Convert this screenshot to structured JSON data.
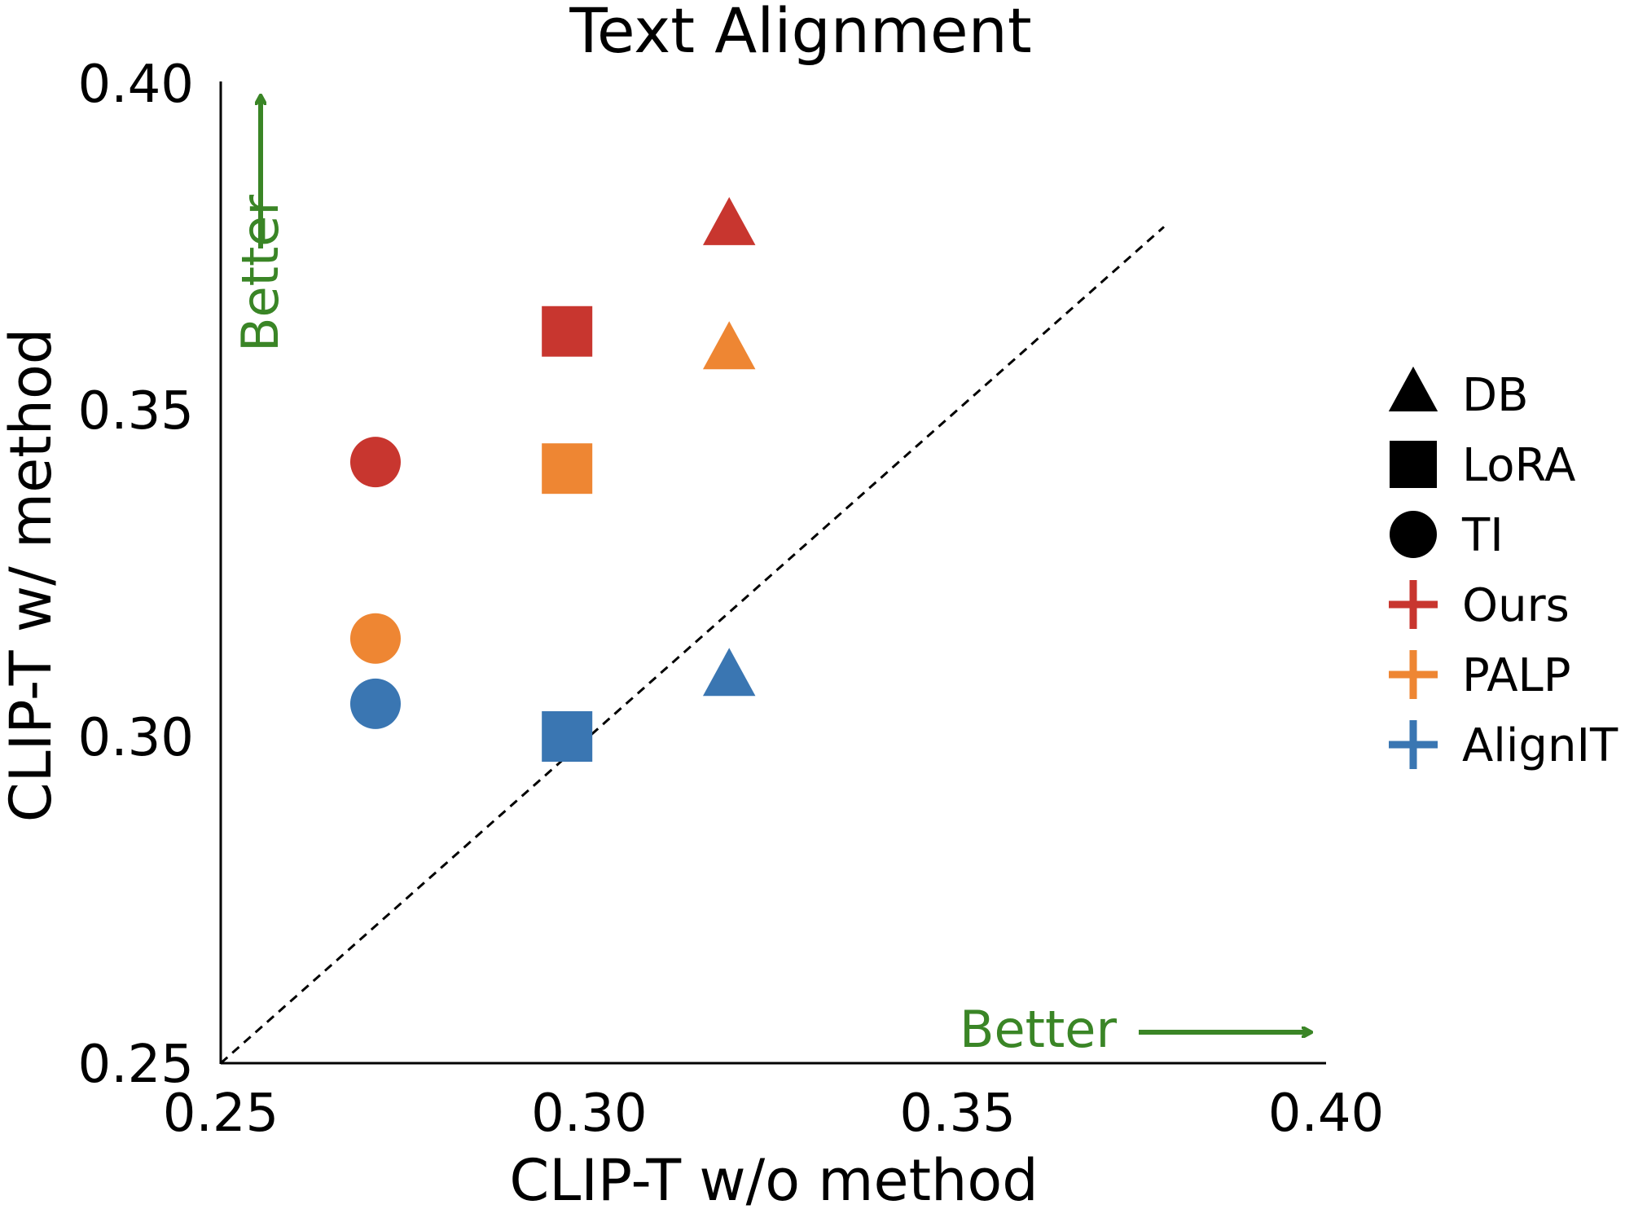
{
  "chart_data": {
    "type": "scatter",
    "title": "Text Alignment",
    "xlabel": "CLIP-T w/o method",
    "ylabel": "CLIP-T w/ method",
    "xlim": [
      0.25,
      0.4
    ],
    "ylim": [
      0.25,
      0.4
    ],
    "x_ticks": [
      "0.25",
      "0.30",
      "0.35",
      "0.40"
    ],
    "y_ticks": [
      "0.25",
      "0.30",
      "0.35",
      "0.40"
    ],
    "grid": false,
    "diagonal_reference": {
      "from": [
        0.25,
        0.25
      ],
      "to": [
        0.378,
        0.378
      ],
      "style": "dashed"
    },
    "annotations": [
      {
        "text": "Better",
        "direction": "up"
      },
      {
        "text": "Better",
        "direction": "right"
      }
    ],
    "legend_placement": "right",
    "legend_shapes": [
      {
        "label": "DB",
        "marker": "triangle"
      },
      {
        "label": "LoRA",
        "marker": "square"
      },
      {
        "label": "TI",
        "marker": "circle"
      }
    ],
    "legend_colors": [
      {
        "label": "Ours",
        "color": "#c8362f"
      },
      {
        "label": "PALP",
        "color": "#ee8633"
      },
      {
        "label": "AlignIT",
        "color": "#3a76b2"
      }
    ],
    "points": [
      {
        "method": "DB",
        "variant": "Ours",
        "x": 0.319,
        "y": 0.378
      },
      {
        "method": "DB",
        "variant": "PALP",
        "x": 0.319,
        "y": 0.359
      },
      {
        "method": "DB",
        "variant": "AlignIT",
        "x": 0.319,
        "y": 0.309
      },
      {
        "method": "LoRA",
        "variant": "Ours",
        "x": 0.297,
        "y": 0.362
      },
      {
        "method": "LoRA",
        "variant": "PALP",
        "x": 0.297,
        "y": 0.341
      },
      {
        "method": "LoRA",
        "variant": "AlignIT",
        "x": 0.297,
        "y": 0.3
      },
      {
        "method": "TI",
        "variant": "Ours",
        "x": 0.271,
        "y": 0.342
      },
      {
        "method": "TI",
        "variant": "PALP",
        "x": 0.271,
        "y": 0.315
      },
      {
        "method": "TI",
        "variant": "AlignIT",
        "x": 0.271,
        "y": 0.305
      }
    ]
  }
}
